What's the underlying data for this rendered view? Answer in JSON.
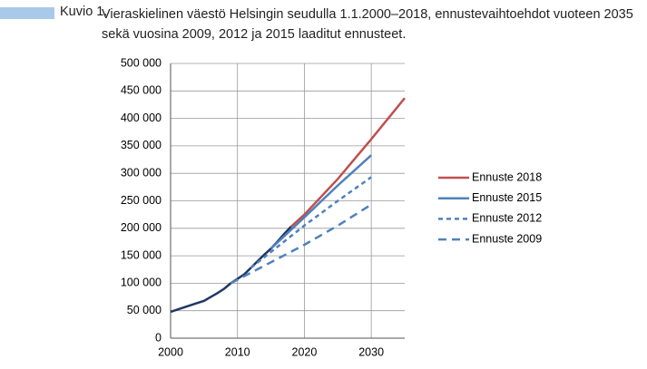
{
  "chart_data": {
    "type": "line",
    "figure_label": "Kuvio 1.",
    "title": "Vieraskielinen väestö Helsingin seudulla 1.1.2000–2018, ennustevaihtoehdot vuoteen 2035 sekä vuosina 2009, 2012 ja 2015 laaditut ennusteet.",
    "xlim": [
      2000,
      2035
    ],
    "xticks": [
      2000,
      2010,
      2020,
      2030
    ],
    "ylim": [
      0,
      500000
    ],
    "yticks": [
      0,
      {
        "value": 50000,
        "label": "50 000"
      },
      {
        "value": 100000,
        "label": "100 000"
      },
      {
        "value": 150000,
        "label": "150 000"
      },
      {
        "value": 200000,
        "label": "200 000"
      },
      {
        "value": 250000,
        "label": "250 000"
      },
      {
        "value": 300000,
        "label": "300 000"
      },
      {
        "value": 350000,
        "label": "350 000"
      },
      {
        "value": 400000,
        "label": "400 000"
      },
      {
        "value": 450000,
        "label": "450 000"
      },
      {
        "value": 500000,
        "label": "500 000"
      }
    ],
    "grid": true,
    "legend": "right",
    "series": [
      {
        "color": "#1f3864",
        "line_style": "solid",
        "x": [
          2000,
          2002,
          2004,
          2005,
          2006,
          2007,
          2008,
          2009,
          2010,
          2011,
          2012,
          2013,
          2014,
          2015,
          2016,
          2017,
          2018
        ],
        "values": [
          48000,
          56000,
          64000,
          68000,
          75000,
          82000,
          90000,
          100000,
          108000,
          116000,
          128000,
          140000,
          152000,
          163000,
          176000,
          190000,
          203000
        ]
      },
      {
        "name": "Ennuste 2018",
        "color": "#c0504d",
        "line_style": "solid",
        "x": [
          2018,
          2020,
          2025,
          2030,
          2035
        ],
        "values": [
          203000,
          225000,
          290000,
          362000,
          437000
        ]
      },
      {
        "name": "Ennuste 2015",
        "color": "#4f81bd",
        "line_style": "solid",
        "x": [
          2015,
          2020,
          2025,
          2030
        ],
        "values": [
          163000,
          220000,
          278000,
          333000
        ]
      },
      {
        "name": "Ennuste 2012",
        "color": "#4f81bd",
        "line_style": "dashed",
        "x": [
          2012,
          2020,
          2025,
          2030
        ],
        "values": [
          128000,
          205000,
          250000,
          293000
        ]
      },
      {
        "name": "Ennuste 2009",
        "color": "#4f81bd",
        "line_style": "long-dashed",
        "x": [
          2009,
          2020,
          2025,
          2030
        ],
        "values": [
          100000,
          170000,
          205000,
          243000
        ]
      }
    ]
  }
}
